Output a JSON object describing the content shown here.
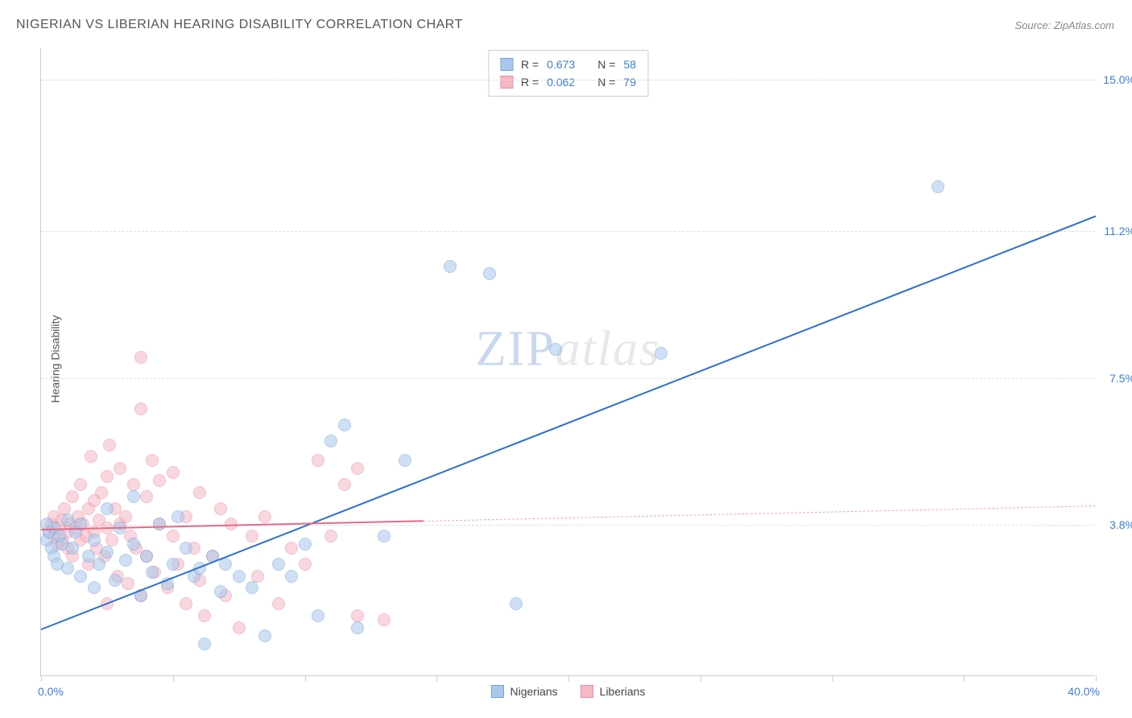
{
  "title": "NIGERIAN VS LIBERIAN HEARING DISABILITY CORRELATION CHART",
  "source": "Source: ZipAtlas.com",
  "ylabel": "Hearing Disability",
  "watermark": {
    "part1": "ZIP",
    "part2": "atlas"
  },
  "chart": {
    "type": "scatter",
    "xlim": [
      0,
      40
    ],
    "ylim": [
      0,
      15.8
    ],
    "xtick_labels": {
      "min": "0.0%",
      "max": "40.0%"
    },
    "ytick_labels": [
      "3.8%",
      "7.5%",
      "11.2%",
      "15.0%"
    ],
    "ytick_values": [
      3.8,
      7.5,
      11.2,
      15.0
    ],
    "xtick_positions": [
      0,
      5,
      10,
      15,
      20,
      25,
      30,
      35,
      40
    ],
    "grid_color": "#dddddd",
    "axis_color": "#cccccc",
    "tick_label_color": "#3b7dd8",
    "background_color": "#ffffff",
    "series": [
      {
        "name": "Nigerians",
        "fill_color": "#a9c8ec",
        "stroke_color": "#6fa3de",
        "fill_opacity": 0.55,
        "marker_radius": 8,
        "trend": {
          "x1": 0,
          "y1": 1.2,
          "x2": 40,
          "y2": 11.6,
          "solid_until_x": 40,
          "color": "#2d6fd2",
          "width": 2
        },
        "stats": {
          "R_label": "R =",
          "R": "0.673",
          "N_label": "N =",
          "N": "58"
        },
        "points": [
          [
            0.2,
            3.4
          ],
          [
            0.3,
            3.6
          ],
          [
            0.4,
            3.2
          ],
          [
            0.5,
            3.0
          ],
          [
            0.5,
            3.7
          ],
          [
            0.6,
            2.8
          ],
          [
            0.7,
            3.5
          ],
          [
            0.8,
            3.3
          ],
          [
            1.0,
            3.9
          ],
          [
            1.0,
            2.7
          ],
          [
            1.2,
            3.2
          ],
          [
            1.3,
            3.6
          ],
          [
            1.5,
            2.5
          ],
          [
            1.5,
            3.8
          ],
          [
            1.8,
            3.0
          ],
          [
            2.0,
            3.4
          ],
          [
            2.0,
            2.2
          ],
          [
            2.2,
            2.8
          ],
          [
            2.5,
            4.2
          ],
          [
            2.5,
            3.1
          ],
          [
            2.8,
            2.4
          ],
          [
            3.0,
            3.7
          ],
          [
            3.2,
            2.9
          ],
          [
            3.5,
            3.3
          ],
          [
            3.5,
            4.5
          ],
          [
            3.8,
            2.0
          ],
          [
            4.0,
            3.0
          ],
          [
            4.2,
            2.6
          ],
          [
            4.5,
            3.8
          ],
          [
            4.8,
            2.3
          ],
          [
            5.0,
            2.8
          ],
          [
            5.2,
            4.0
          ],
          [
            5.5,
            3.2
          ],
          [
            5.8,
            2.5
          ],
          [
            6.0,
            2.7
          ],
          [
            6.2,
            0.8
          ],
          [
            6.5,
            3.0
          ],
          [
            6.8,
            2.1
          ],
          [
            7.0,
            2.8
          ],
          [
            7.5,
            2.5
          ],
          [
            8.0,
            2.2
          ],
          [
            8.5,
            1.0
          ],
          [
            9.0,
            2.8
          ],
          [
            9.5,
            2.5
          ],
          [
            10.0,
            3.3
          ],
          [
            10.5,
            1.5
          ],
          [
            11.0,
            5.9
          ],
          [
            11.5,
            6.3
          ],
          [
            12.0,
            1.2
          ],
          [
            13.0,
            3.5
          ],
          [
            13.8,
            5.4
          ],
          [
            15.5,
            10.3
          ],
          [
            17.0,
            10.1
          ],
          [
            18.0,
            1.8
          ],
          [
            19.5,
            8.2
          ],
          [
            23.5,
            8.1
          ],
          [
            34.0,
            12.3
          ],
          [
            0.2,
            3.8
          ]
        ]
      },
      {
        "name": "Liberians",
        "fill_color": "#f5b8c4",
        "stroke_color": "#e98ba0",
        "fill_opacity": 0.55,
        "marker_radius": 8,
        "trend": {
          "x1": 0,
          "y1": 3.7,
          "x2": 40,
          "y2": 4.3,
          "solid_until_x": 14.5,
          "color": "#e56b87",
          "width": 2,
          "dash_color": "#f0a8b8"
        },
        "stats": {
          "R_label": "R =",
          "R": "0.062",
          "N_label": "N =",
          "N": "79"
        },
        "points": [
          [
            0.3,
            3.6
          ],
          [
            0.4,
            3.8
          ],
          [
            0.5,
            3.5
          ],
          [
            0.5,
            4.0
          ],
          [
            0.6,
            3.3
          ],
          [
            0.7,
            3.7
          ],
          [
            0.8,
            3.9
          ],
          [
            0.8,
            3.4
          ],
          [
            0.9,
            4.2
          ],
          [
            1.0,
            3.6
          ],
          [
            1.0,
            3.2
          ],
          [
            1.1,
            3.8
          ],
          [
            1.2,
            4.5
          ],
          [
            1.2,
            3.0
          ],
          [
            1.3,
            3.7
          ],
          [
            1.4,
            4.0
          ],
          [
            1.5,
            3.4
          ],
          [
            1.5,
            4.8
          ],
          [
            1.6,
            3.8
          ],
          [
            1.7,
            3.5
          ],
          [
            1.8,
            4.2
          ],
          [
            1.8,
            2.8
          ],
          [
            1.9,
            5.5
          ],
          [
            2.0,
            3.6
          ],
          [
            2.0,
            4.4
          ],
          [
            2.1,
            3.2
          ],
          [
            2.2,
            3.9
          ],
          [
            2.3,
            4.6
          ],
          [
            2.4,
            3.0
          ],
          [
            2.5,
            5.0
          ],
          [
            2.5,
            3.7
          ],
          [
            2.6,
            5.8
          ],
          [
            2.7,
            3.4
          ],
          [
            2.8,
            4.2
          ],
          [
            2.9,
            2.5
          ],
          [
            3.0,
            3.8
          ],
          [
            3.0,
            5.2
          ],
          [
            3.2,
            4.0
          ],
          [
            3.3,
            2.3
          ],
          [
            3.4,
            3.5
          ],
          [
            3.5,
            4.8
          ],
          [
            3.6,
            3.2
          ],
          [
            3.8,
            2.0
          ],
          [
            3.8,
            6.7
          ],
          [
            4.0,
            4.5
          ],
          [
            4.0,
            3.0
          ],
          [
            4.2,
            5.4
          ],
          [
            4.3,
            2.6
          ],
          [
            4.5,
            3.8
          ],
          [
            4.5,
            4.9
          ],
          [
            4.8,
            2.2
          ],
          [
            5.0,
            3.5
          ],
          [
            5.0,
            5.1
          ],
          [
            5.2,
            2.8
          ],
          [
            5.5,
            4.0
          ],
          [
            5.5,
            1.8
          ],
          [
            5.8,
            3.2
          ],
          [
            6.0,
            4.6
          ],
          [
            6.0,
            2.4
          ],
          [
            6.2,
            1.5
          ],
          [
            6.5,
            3.0
          ],
          [
            6.8,
            4.2
          ],
          [
            7.0,
            2.0
          ],
          [
            7.2,
            3.8
          ],
          [
            7.5,
            1.2
          ],
          [
            8.0,
            3.5
          ],
          [
            8.2,
            2.5
          ],
          [
            8.5,
            4.0
          ],
          [
            9.0,
            1.8
          ],
          [
            9.5,
            3.2
          ],
          [
            10.0,
            2.8
          ],
          [
            10.5,
            5.4
          ],
          [
            11.0,
            3.5
          ],
          [
            11.5,
            4.8
          ],
          [
            12.0,
            1.5
          ],
          [
            12.0,
            5.2
          ],
          [
            13.0,
            1.4
          ],
          [
            3.8,
            8.0
          ],
          [
            2.5,
            1.8
          ]
        ]
      }
    ]
  },
  "legend_bottom": [
    {
      "label": "Nigerians",
      "fill": "#a9c8ec",
      "stroke": "#6fa3de"
    },
    {
      "label": "Liberians",
      "fill": "#f5b8c4",
      "stroke": "#e98ba0"
    }
  ]
}
